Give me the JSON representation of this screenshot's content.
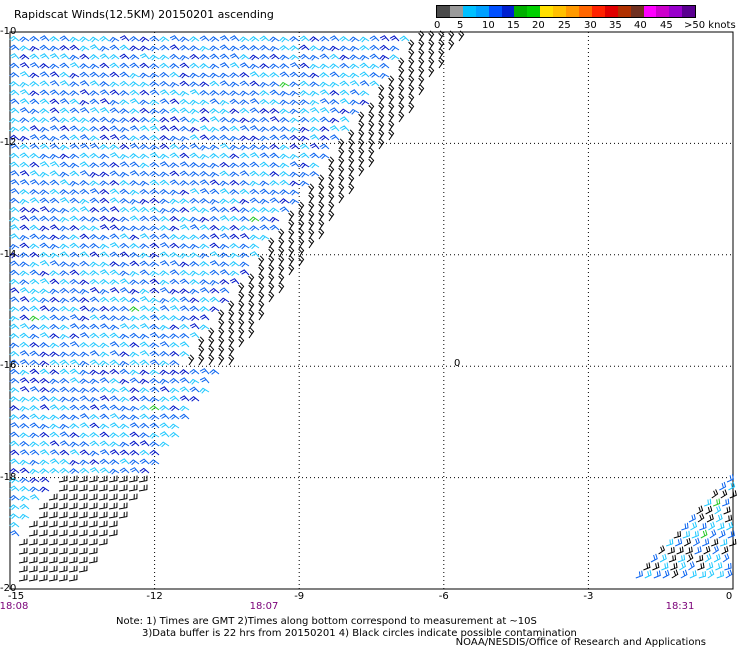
{
  "title": "Rapidscat Winds(12.5KM) 20150201 ascending",
  "colorbar": {
    "colors": [
      "#4b4b4b",
      "#9a9a9a",
      "#00c0ff",
      "#00a0ff",
      "#0050ff",
      "#0020d0",
      "#00b000",
      "#00d000",
      "#ffe000",
      "#ffc000",
      "#ff9900",
      "#ff6600",
      "#ff2200",
      "#e00000",
      "#b03000",
      "#703020",
      "#ff00ff",
      "#cc00cc",
      "#9900cc",
      "#5a0090"
    ],
    "labels": [
      "0",
      "5",
      "10",
      "15",
      "20",
      "25",
      "30",
      "35",
      "40",
      "45",
      ">50 knots"
    ]
  },
  "axes": {
    "lat_labels": [
      "-10",
      "-12",
      "-14",
      "-16",
      "-18",
      "-20"
    ],
    "lon_labels": [
      "-15",
      "-12",
      "-9",
      "-6",
      "-3",
      "0"
    ],
    "time_labels": [
      "18:08",
      "18:07",
      "18:31"
    ]
  },
  "contamination_marker": "0",
  "notes": {
    "line1": "Note: 1) Times are GMT 2)Times along bottom correspond to measurement at ~10S",
    "line2": "3)Data buffer is 22 hrs from 20150201 4) Black circles indicate possible contamination"
  },
  "credit": "NOAA/NESDIS/Office of Research and Applications",
  "wind_colors": {
    "light": "#1ec8ff",
    "mid": "#0a64f0",
    "dark": "#0014c8",
    "flag": "#000000",
    "green": "#28c828"
  }
}
